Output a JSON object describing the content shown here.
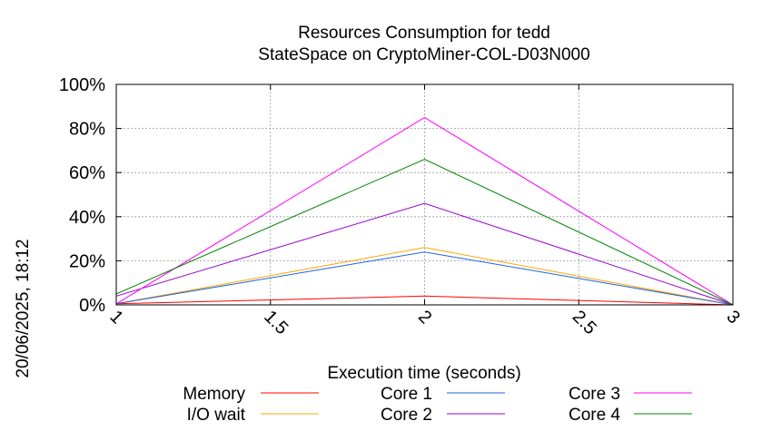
{
  "chart_data": {
    "type": "line",
    "title": "Resources Consumption for tedd",
    "subtitle": "StateSpace on CryptoMiner-COL-D03N000",
    "xlabel": "Execution time (seconds)",
    "ylabel": "",
    "side_label": "20/06/2025, 18:12",
    "xlim": [
      1,
      3
    ],
    "ylim": [
      0,
      100
    ],
    "x_ticks": [
      "1",
      "1.5",
      "2",
      "2.5",
      "3"
    ],
    "y_ticks": [
      "0%",
      "20%",
      "40%",
      "60%",
      "80%",
      "100%"
    ],
    "grid": true,
    "legend_position": "bottom",
    "x": [
      1,
      2,
      3
    ],
    "series": [
      {
        "name": "Memory",
        "color": "#ff0000",
        "values": [
          0.5,
          4,
          0
        ]
      },
      {
        "name": "I/O wait",
        "color": "#ffa500",
        "values": [
          0.5,
          26,
          0
        ]
      },
      {
        "name": "Core 1",
        "color": "#1e64dc",
        "values": [
          0.5,
          24,
          0
        ]
      },
      {
        "name": "Core 2",
        "color": "#9400d3",
        "values": [
          4,
          46,
          0
        ]
      },
      {
        "name": "Core 3",
        "color": "#ff00ff",
        "values": [
          0.5,
          85,
          0
        ]
      },
      {
        "name": "Core 4",
        "color": "#008000",
        "values": [
          5,
          66,
          0
        ]
      }
    ]
  }
}
